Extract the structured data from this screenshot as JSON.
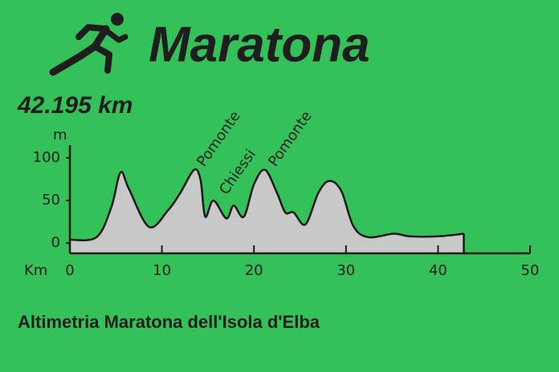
{
  "chart_data": {
    "type": "area",
    "title": "Maratona",
    "subtitle": "42.195 km",
    "caption": "Altimetria Maratona dell'Isola d'Elba",
    "y_label": "m",
    "x_label": "Km",
    "annotations": [
      "Pomonte",
      "Chiessi",
      "Pomonte"
    ],
    "x": [
      0,
      2.9,
      4.5,
      5.5,
      6.4,
      8.6,
      10.7,
      12,
      13.5,
      14.2,
      14.7,
      15.6,
      17,
      17.8,
      18.9,
      20,
      21.2,
      22.5,
      23.4,
      24.3,
      25.6,
      27,
      28.2,
      29.5,
      30.8,
      32.4,
      35.2,
      36.9,
      40,
      42.8
    ],
    "values": [
      4,
      7,
      42,
      83,
      64,
      19,
      39,
      59,
      86,
      74,
      31,
      50,
      29,
      44,
      31,
      69,
      86,
      59,
      36,
      36,
      22,
      59,
      73,
      61,
      20,
      7,
      11,
      8,
      8,
      11
    ],
    "color": "#c8c8c8",
    "xlim": [
      0,
      50
    ],
    "xticks": [
      0,
      10,
      20,
      30,
      40,
      50
    ],
    "ylim": [
      -12,
      115
    ],
    "yticks": [
      0,
      50,
      100
    ]
  }
}
